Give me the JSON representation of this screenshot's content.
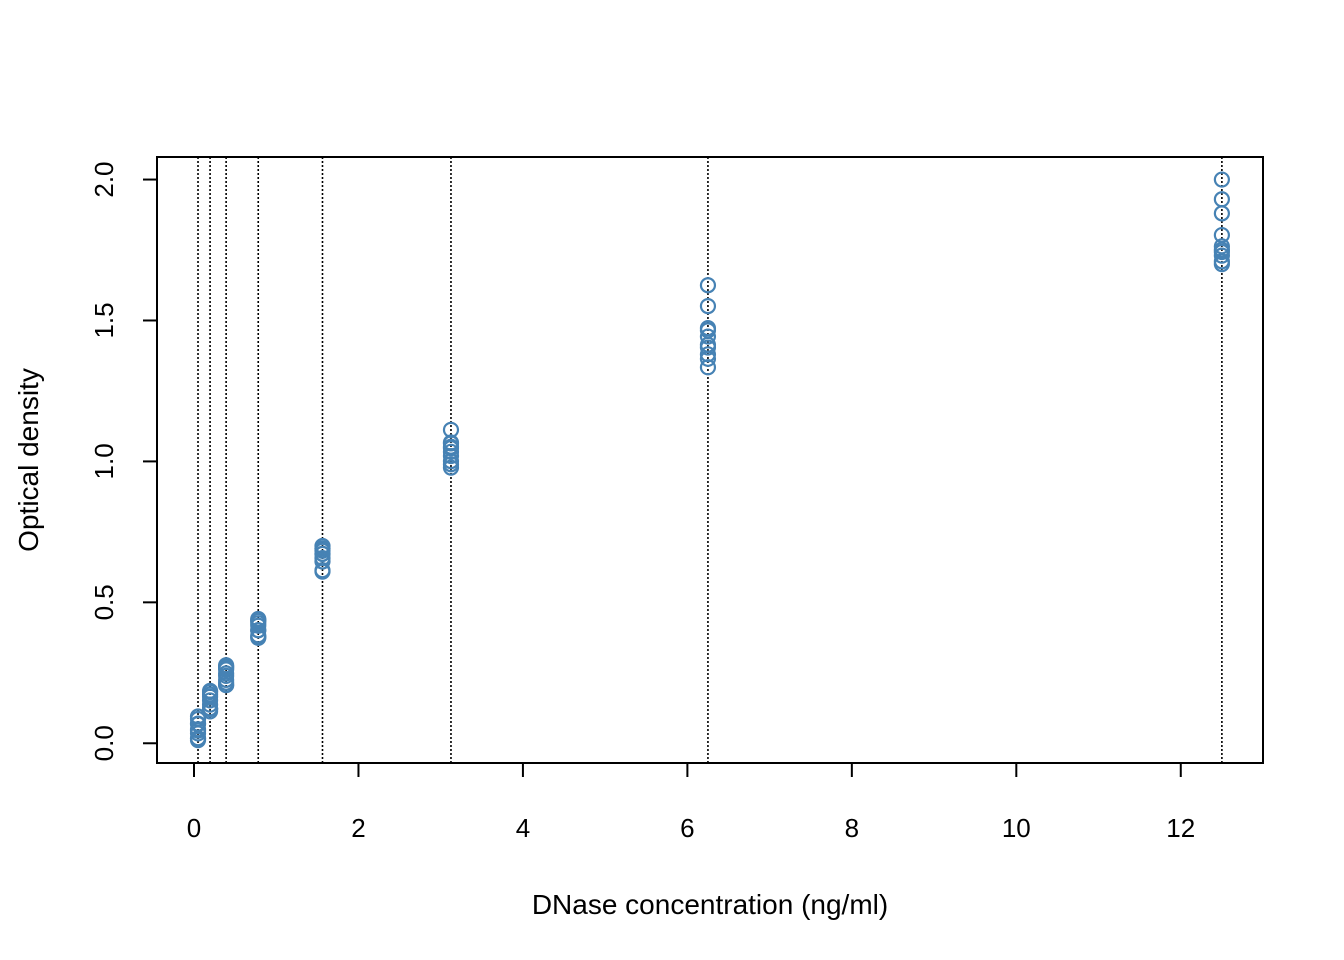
{
  "chart_data": {
    "type": "scatter",
    "title": "",
    "xlabel": "DNase concentration (ng/ml)",
    "ylabel": "Optical density",
    "xlim": [
      -0.45,
      13.0
    ],
    "ylim": [
      -0.07,
      2.08
    ],
    "x_ticks": [
      0,
      2,
      4,
      6,
      8,
      10,
      12
    ],
    "x_tick_labels": [
      "0",
      "2",
      "4",
      "6",
      "8",
      "10",
      "12"
    ],
    "y_ticks": [
      0.0,
      0.5,
      1.0,
      1.5,
      2.0
    ],
    "y_tick_labels": [
      "0.0",
      "0.5",
      "1.0",
      "1.5",
      "2.0"
    ],
    "vertical_reference_lines": [
      0.04882812,
      0.1953125,
      0.390625,
      0.78125,
      1.5625,
      3.125,
      6.25,
      12.5
    ],
    "point_color": "#4682b4",
    "marker": "open-circle",
    "grid": false,
    "legend": "none",
    "series": [
      {
        "x": [
          0.04882812,
          0.04882812,
          0.1953125,
          0.1953125,
          0.390625,
          0.390625,
          0.78125,
          0.78125,
          1.5625,
          1.5625,
          3.125,
          3.125,
          6.25,
          6.25,
          12.5,
          12.5,
          0.04882812,
          0.04882812,
          0.1953125,
          0.1953125,
          0.390625,
          0.390625,
          0.78125,
          0.78125,
          1.5625,
          1.5625,
          3.125,
          3.125,
          6.25,
          6.25,
          12.5,
          12.5,
          0.04882812,
          0.04882812,
          0.1953125,
          0.1953125,
          0.390625,
          0.390625,
          0.78125,
          0.78125,
          1.5625,
          1.5625,
          3.125,
          3.125,
          6.25,
          6.25,
          12.5,
          12.5,
          0.04882812,
          0.04882812,
          0.1953125,
          0.1953125,
          0.390625,
          0.390625,
          0.78125,
          0.78125,
          1.5625,
          1.5625,
          3.125,
          3.125,
          6.25,
          6.25,
          12.5,
          12.5,
          0.04882812,
          0.04882812,
          0.1953125,
          0.1953125,
          0.390625,
          0.390625,
          0.78125,
          0.78125,
          1.5625,
          1.5625,
          3.125,
          3.125,
          6.25,
          6.25,
          12.5,
          12.5
        ],
        "y": [
          0.017,
          0.018,
          0.121,
          0.124,
          0.206,
          0.215,
          0.377,
          0.374,
          0.614,
          0.609,
          1.019,
          1.001,
          1.334,
          1.364,
          1.73,
          1.71,
          0.045,
          0.05,
          0.137,
          0.123,
          0.225,
          0.207,
          0.401,
          0.383,
          0.672,
          0.683,
          1.034,
          1.052,
          1.465,
          1.414,
          1.751,
          1.743,
          0.07,
          0.068,
          0.173,
          0.165,
          0.277,
          0.248,
          0.434,
          0.417,
          0.7,
          0.657,
          1.112,
          1.064,
          1.625,
          1.551,
          2.0,
          1.93,
          0.011,
          0.035,
          0.113,
          0.152,
          0.239,
          0.262,
          0.401,
          0.426,
          0.645,
          0.69,
          0.978,
          0.99,
          1.38,
          1.443,
          1.88,
          1.7,
          0.086,
          0.095,
          0.182,
          0.186,
          0.272,
          0.268,
          0.437,
          0.441,
          0.672,
          0.692,
          1.067,
          1.047,
          1.473,
          1.404,
          1.803,
          1.763
        ]
      }
    ]
  }
}
